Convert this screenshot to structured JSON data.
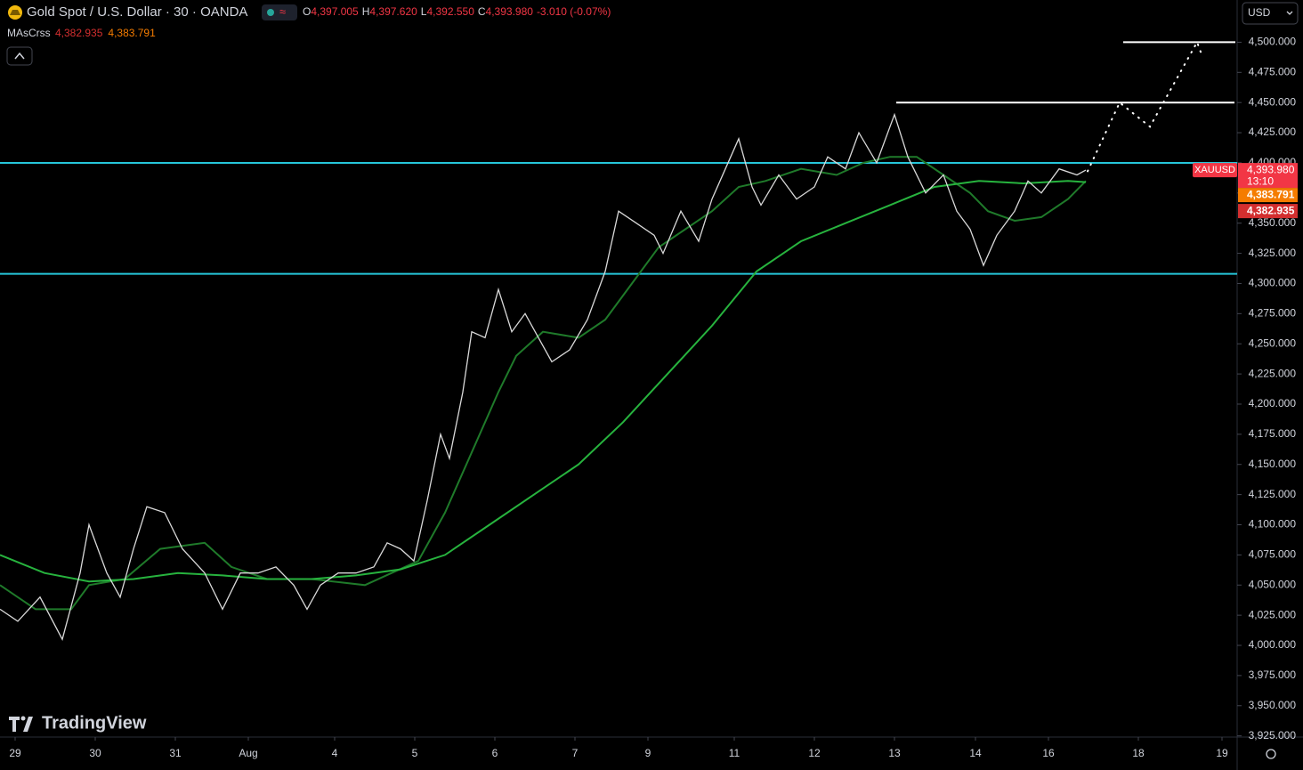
{
  "chart_data": {
    "type": "line",
    "title": "Gold Spot / U.S. Dollar · 30 · OANDA",
    "ohlc": [
      {
        "key": "O",
        "value": 4397.005,
        "label": "4,397.005"
      },
      {
        "key": "H",
        "value": 4397.62,
        "label": "4,397.620"
      },
      {
        "key": "L",
        "value": 4392.55,
        "label": "4,392.550"
      },
      {
        "key": "C",
        "value": 4393.98,
        "label": "4,393.980"
      }
    ],
    "change": "-3.010 (-0.07%)",
    "series": [
      {
        "name": "XAUUSD",
        "color": "#d9d9d9",
        "x": [
          0,
          2,
          4.5,
          7,
          9,
          10,
          12,
          13.5,
          15,
          16.5,
          18.5,
          20.5,
          23,
          25,
          27,
          29,
          31,
          33,
          34.5,
          36,
          38,
          40,
          42,
          43.5,
          45,
          46.5,
          48,
          49.5,
          50.5,
          52,
          53,
          54.5,
          56,
          57.5,
          59,
          60.5,
          62,
          64,
          66,
          68,
          69.5,
          71.5,
          73.5,
          74.5,
          76.5,
          78.5,
          80,
          81.5,
          83,
          84.5,
          85.5,
          87.5,
          89.5,
          91.5,
          93,
          95,
          96.5,
          98.5,
          100.5,
          102,
          104,
          106,
          107.5,
          109,
          110.5,
          112,
          114,
          115.5,
          117,
          119,
          121,
          122
        ],
        "values": [
          4030,
          4020,
          4040,
          4005,
          4060,
          4100,
          4060,
          4040,
          4080,
          4115,
          4110,
          4080,
          4060,
          4030,
          4060,
          4060,
          4065,
          4050,
          4030,
          4050,
          4060,
          4060,
          4065,
          4085,
          4080,
          4070,
          4120,
          4175,
          4155,
          4210,
          4260,
          4255,
          4295,
          4260,
          4275,
          4255,
          4235,
          4245,
          4270,
          4310,
          4360,
          4350,
          4340,
          4325,
          4360,
          4335,
          4370,
          4395,
          4420,
          4380,
          4365,
          4390,
          4370,
          4380,
          4405,
          4395,
          4425,
          4400,
          4440,
          4405,
          4375,
          4390,
          4360,
          4345,
          4315,
          4340,
          4360,
          4385,
          4375,
          4395,
          4390,
          4394
        ],
        "last": {
          "value": 4393.98,
          "label": "4,393.980"
        },
        "countdown": "13:10"
      }
    ],
    "indicator": {
      "name": "MAsCrss",
      "lines": [
        {
          "color": "#1f7a2a",
          "tag_color": "#d32f2f",
          "x": [
            0,
            4,
            8,
            10,
            14,
            18,
            23,
            26,
            30,
            35,
            41,
            44,
            47,
            50,
            53,
            56,
            58,
            61,
            65,
            68,
            71,
            74,
            77,
            80,
            83,
            86,
            90,
            94,
            97,
            100,
            103,
            106,
            109,
            111,
            114,
            117,
            120,
            122
          ],
          "values": [
            4050,
            4030,
            4030,
            4050,
            4055,
            4080,
            4085,
            4065,
            4055,
            4055,
            4050,
            4060,
            4070,
            4110,
            4160,
            4210,
            4240,
            4260,
            4255,
            4270,
            4300,
            4330,
            4345,
            4360,
            4380,
            4385,
            4395,
            4390,
            4400,
            4405,
            4405,
            4390,
            4375,
            4360,
            4352,
            4355,
            4370,
            4385
          ],
          "last": {
            "value": 4382.935,
            "label": "4,382.935"
          }
        },
        {
          "color": "#27b33e",
          "tag_color": "#f57c00",
          "x": [
            0,
            5,
            10,
            15,
            20,
            25,
            30,
            35,
            40,
            45,
            50,
            55,
            60,
            65,
            70,
            75,
            80,
            85,
            90,
            95,
            100,
            105,
            110,
            115,
            120,
            122
          ],
          "values": [
            4075,
            4060,
            4053,
            4055,
            4060,
            4058,
            4055,
            4055,
            4058,
            4063,
            4075,
            4100,
            4125,
            4150,
            4185,
            4225,
            4265,
            4310,
            4335,
            4350,
            4365,
            4380,
            4385,
            4383,
            4385,
            4384
          ],
          "last": {
            "value": 4383.791,
            "label": "4,383.791"
          }
        }
      ]
    },
    "levels": [
      {
        "value": 4400,
        "color": "#26c6da"
      },
      {
        "value": 4308,
        "color": "#26c6da"
      }
    ],
    "drawings": [
      {
        "value": 4450,
        "x": [
          100.7,
          138.7
        ],
        "color": "#ffffff"
      },
      {
        "value": 4500,
        "x": [
          126.2,
          138.8
        ],
        "color": "#ffffff"
      }
    ],
    "projection": {
      "x": [
        122.2,
        125.8,
        129.2,
        134.5,
        135
      ],
      "values": [
        4393,
        4450,
        4430,
        4500,
        4490
      ],
      "color": "#ffffff"
    },
    "xlim": [
      0,
      139
    ],
    "xticks": [
      {
        "value": 1.7,
        "label": "29"
      },
      {
        "value": 10.7,
        "label": "30"
      },
      {
        "value": 19.7,
        "label": "31"
      },
      {
        "value": 27.9,
        "label": "Aug"
      },
      {
        "value": 37.6,
        "label": "4"
      },
      {
        "value": 46.6,
        "label": "5"
      },
      {
        "value": 55.6,
        "label": "6"
      },
      {
        "value": 64.6,
        "label": "7"
      },
      {
        "value": 72.8,
        "label": "9"
      },
      {
        "value": 82.5,
        "label": "11"
      },
      {
        "value": 91.5,
        "label": "12"
      },
      {
        "value": 100.5,
        "label": "13"
      },
      {
        "value": 109.6,
        "label": "14"
      },
      {
        "value": 117.8,
        "label": "16"
      },
      {
        "value": 127.9,
        "label": "18"
      },
      {
        "value": 137.3,
        "label": "19"
      }
    ],
    "ylim": [
      3924,
      4535
    ],
    "yticks": [
      {
        "value": 3925,
        "label": "3,925.000"
      },
      {
        "value": 3950,
        "label": "3,950.000"
      },
      {
        "value": 3975,
        "label": "3,975.000"
      },
      {
        "value": 4000,
        "label": "4,000.000"
      },
      {
        "value": 4025,
        "label": "4,025.000"
      },
      {
        "value": 4050,
        "label": "4,050.000"
      },
      {
        "value": 4075,
        "label": "4,075.000"
      },
      {
        "value": 4100,
        "label": "4,100.000"
      },
      {
        "value": 4125,
        "label": "4,125.000"
      },
      {
        "value": 4150,
        "label": "4,150.000"
      },
      {
        "value": 4175,
        "label": "4,175.000"
      },
      {
        "value": 4200,
        "label": "4,200.000"
      },
      {
        "value": 4225,
        "label": "4,225.000"
      },
      {
        "value": 4250,
        "label": "4,250.000"
      },
      {
        "value": 4275,
        "label": "4,275.000"
      },
      {
        "value": 4300,
        "label": "4,300.000"
      },
      {
        "value": 4325,
        "label": "4,325.000"
      },
      {
        "value": 4350,
        "label": "4,350.000"
      },
      {
        "value": 4375,
        "label": "4,375.000"
      },
      {
        "value": 4400,
        "label": "4,400.000"
      },
      {
        "value": 4425,
        "label": "4,425.000"
      },
      {
        "value": 4450,
        "label": "4,450.000"
      },
      {
        "value": 4475,
        "label": "4,475.000"
      },
      {
        "value": 4500,
        "label": "4,500.000"
      }
    ],
    "grid": false,
    "currency": "USD",
    "brand": "TradingView"
  }
}
